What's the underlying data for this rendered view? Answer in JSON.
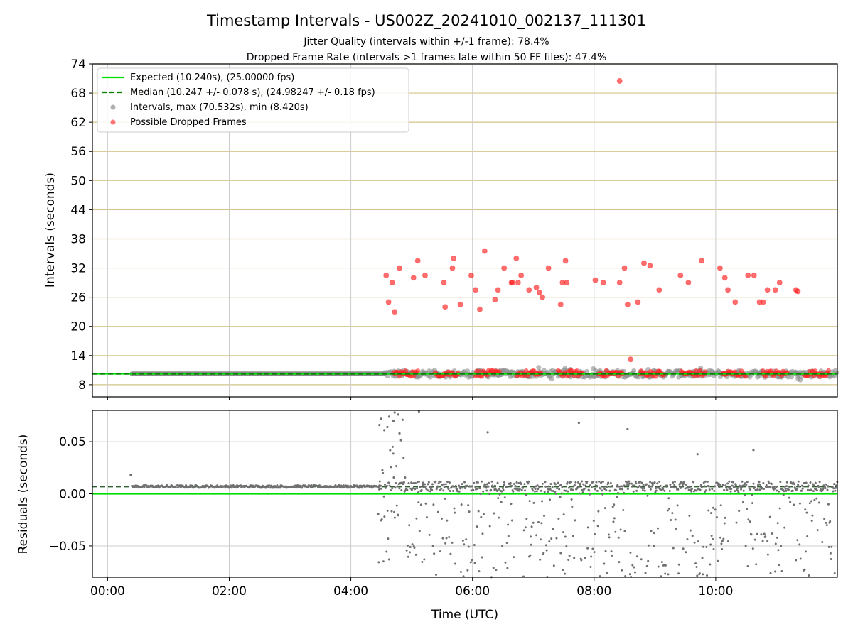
{
  "figure": {
    "title": "Timestamp Intervals - US002Z_20241010_002137_111301",
    "subtitle_1": "Jitter Quality (intervals within +/-1 frame): 78.4%",
    "subtitle_2": "Dropped Frame Rate (intervals >1 frames late within 50 FF files): 47.4%"
  },
  "legend": {
    "expected": "Expected (10.240s), (25.00000 fps)",
    "median": "Median (10.247 +/- 0.078 s), (24.98247 +/- 0.18 fps)",
    "intervals": "Intervals, max (70.532s), min (8.420s)",
    "dropped": "Possible Dropped Frames"
  },
  "colors": {
    "expected": "#00e000",
    "median": "#008000",
    "interval_points": "#8c8c8c",
    "dropped_points": "#ff2020",
    "grid_h_top": "#d4c48a",
    "grid_v": "#cccccc",
    "residual_points": "#707070",
    "residual_median": "#2f5f2f"
  },
  "chart_data": [
    {
      "type": "scatter",
      "ylabel": "Intervals (seconds)",
      "x_unit": "hours UTC",
      "xlim": [
        -0.25,
        12.0
      ],
      "ylim": [
        5.5,
        74
      ],
      "yticks": [
        8,
        14,
        20,
        26,
        32,
        38,
        44,
        50,
        56,
        62,
        68,
        74
      ],
      "expected_interval": 10.24,
      "median_interval": 10.247,
      "legend_placement": "top-left",
      "grid": true,
      "series": [
        {
          "name": "Possible Dropped Frames",
          "x": [
            4.58,
            4.62,
            4.68,
            4.72,
            4.8,
            5.03,
            5.1,
            5.22,
            5.53,
            5.55,
            5.67,
            5.69,
            5.8,
            5.98,
            6.05,
            6.12,
            6.2,
            6.37,
            6.42,
            6.52,
            6.64,
            6.66,
            6.72,
            6.75,
            6.8,
            6.93,
            7.05,
            7.1,
            7.15,
            7.25,
            7.45,
            7.48,
            7.53,
            7.55,
            8.02,
            8.15,
            8.42,
            8.5,
            8.55,
            8.6,
            8.72,
            8.82,
            8.92,
            9.07,
            9.42,
            9.55,
            9.77,
            10.07,
            10.15,
            10.2,
            10.32,
            10.53,
            10.63,
            10.72,
            10.78,
            10.85,
            10.98,
            11.05,
            11.32,
            11.35,
            8.42
          ],
          "y": [
            30.5,
            25,
            29,
            23,
            32,
            30,
            33.5,
            30.5,
            29,
            24,
            32,
            34,
            24.5,
            30.5,
            27.5,
            23.5,
            35.5,
            25.5,
            27.5,
            32,
            29,
            29,
            34,
            29,
            30.5,
            27.5,
            28,
            27,
            26,
            32,
            24.5,
            29,
            33.5,
            29,
            29.5,
            29,
            29,
            32,
            24.5,
            13.2,
            25,
            33,
            32.5,
            27.5,
            30.5,
            29,
            33.5,
            32,
            30,
            27.5,
            25,
            30.5,
            30.5,
            25,
            25,
            27.5,
            27.5,
            29,
            27.5,
            27.2,
            70.5
          ]
        }
      ],
      "band_segments": [
        {
          "x_start": 0.4,
          "x_end": 4.55,
          "dense": false
        },
        {
          "x_start": 4.55,
          "x_end": 12.0,
          "dense": true
        }
      ]
    },
    {
      "type": "scatter",
      "ylabel": "Residuals (seconds)",
      "xlabel": "Time (UTC)",
      "xlim": [
        -0.25,
        12.0
      ],
      "ylim": [
        -0.08,
        0.08
      ],
      "yticks": [
        -0.05,
        0.0,
        0.05
      ],
      "ytick_labels": [
        "−0.05",
        "0.00",
        "0.05"
      ],
      "xticks": [
        0,
        2,
        4,
        6,
        8,
        10
      ],
      "xtick_labels": [
        "00:00",
        "02:00",
        "04:00",
        "06:00",
        "08:00",
        "10:00"
      ],
      "expected_residual": 0.0,
      "median_residual": 0.007,
      "grid": true,
      "outlier_points": {
        "x": [
          0.38,
          4.47,
          4.5,
          4.55,
          4.6,
          4.63,
          4.7,
          4.72,
          4.78,
          4.8,
          4.85,
          5.12,
          6.25,
          7.75,
          8.55,
          9.7,
          10.62
        ],
        "y": [
          0.018,
          0.066,
          0.072,
          0.061,
          0.064,
          0.074,
          0.07,
          0.078,
          0.076,
          0.058,
          0.071,
          0.079,
          0.059,
          0.068,
          0.062,
          0.038,
          0.042
        ]
      }
    }
  ]
}
